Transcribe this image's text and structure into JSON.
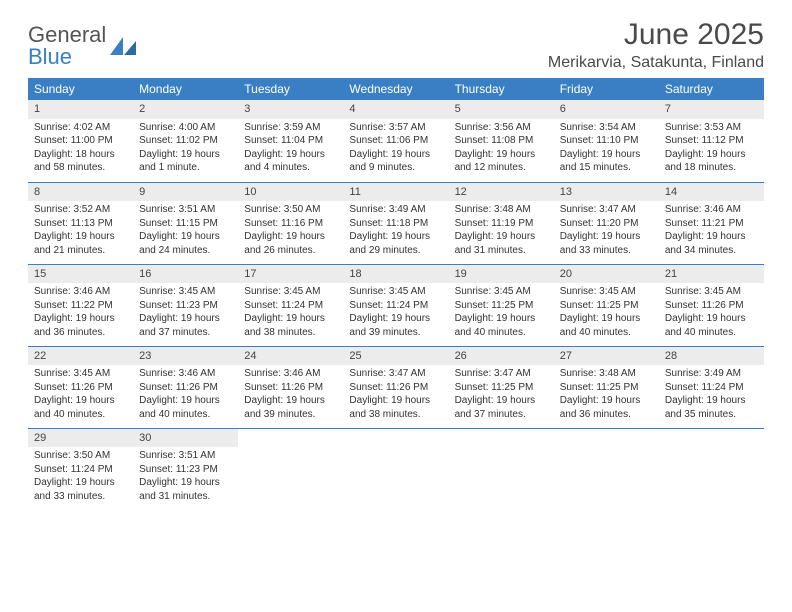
{
  "logo": {
    "line1": "General",
    "line2": "Blue"
  },
  "title": "June 2025",
  "location": "Merikarvia, Satakunta, Finland",
  "colors": {
    "accent": "#3a7fc4",
    "header_bg": "#3a7fc4",
    "daynum_bg": "#ececec",
    "text": "#333333"
  },
  "weekdays": [
    "Sunday",
    "Monday",
    "Tuesday",
    "Wednesday",
    "Thursday",
    "Friday",
    "Saturday"
  ],
  "days": [
    {
      "n": "1",
      "sr": "Sunrise: 4:02 AM",
      "ss": "Sunset: 11:00 PM",
      "dl1": "Daylight: 18 hours",
      "dl2": "and 58 minutes."
    },
    {
      "n": "2",
      "sr": "Sunrise: 4:00 AM",
      "ss": "Sunset: 11:02 PM",
      "dl1": "Daylight: 19 hours",
      "dl2": "and 1 minute."
    },
    {
      "n": "3",
      "sr": "Sunrise: 3:59 AM",
      "ss": "Sunset: 11:04 PM",
      "dl1": "Daylight: 19 hours",
      "dl2": "and 4 minutes."
    },
    {
      "n": "4",
      "sr": "Sunrise: 3:57 AM",
      "ss": "Sunset: 11:06 PM",
      "dl1": "Daylight: 19 hours",
      "dl2": "and 9 minutes."
    },
    {
      "n": "5",
      "sr": "Sunrise: 3:56 AM",
      "ss": "Sunset: 11:08 PM",
      "dl1": "Daylight: 19 hours",
      "dl2": "and 12 minutes."
    },
    {
      "n": "6",
      "sr": "Sunrise: 3:54 AM",
      "ss": "Sunset: 11:10 PM",
      "dl1": "Daylight: 19 hours",
      "dl2": "and 15 minutes."
    },
    {
      "n": "7",
      "sr": "Sunrise: 3:53 AM",
      "ss": "Sunset: 11:12 PM",
      "dl1": "Daylight: 19 hours",
      "dl2": "and 18 minutes."
    },
    {
      "n": "8",
      "sr": "Sunrise: 3:52 AM",
      "ss": "Sunset: 11:13 PM",
      "dl1": "Daylight: 19 hours",
      "dl2": "and 21 minutes."
    },
    {
      "n": "9",
      "sr": "Sunrise: 3:51 AM",
      "ss": "Sunset: 11:15 PM",
      "dl1": "Daylight: 19 hours",
      "dl2": "and 24 minutes."
    },
    {
      "n": "10",
      "sr": "Sunrise: 3:50 AM",
      "ss": "Sunset: 11:16 PM",
      "dl1": "Daylight: 19 hours",
      "dl2": "and 26 minutes."
    },
    {
      "n": "11",
      "sr": "Sunrise: 3:49 AM",
      "ss": "Sunset: 11:18 PM",
      "dl1": "Daylight: 19 hours",
      "dl2": "and 29 minutes."
    },
    {
      "n": "12",
      "sr": "Sunrise: 3:48 AM",
      "ss": "Sunset: 11:19 PM",
      "dl1": "Daylight: 19 hours",
      "dl2": "and 31 minutes."
    },
    {
      "n": "13",
      "sr": "Sunrise: 3:47 AM",
      "ss": "Sunset: 11:20 PM",
      "dl1": "Daylight: 19 hours",
      "dl2": "and 33 minutes."
    },
    {
      "n": "14",
      "sr": "Sunrise: 3:46 AM",
      "ss": "Sunset: 11:21 PM",
      "dl1": "Daylight: 19 hours",
      "dl2": "and 34 minutes."
    },
    {
      "n": "15",
      "sr": "Sunrise: 3:46 AM",
      "ss": "Sunset: 11:22 PM",
      "dl1": "Daylight: 19 hours",
      "dl2": "and 36 minutes."
    },
    {
      "n": "16",
      "sr": "Sunrise: 3:45 AM",
      "ss": "Sunset: 11:23 PM",
      "dl1": "Daylight: 19 hours",
      "dl2": "and 37 minutes."
    },
    {
      "n": "17",
      "sr": "Sunrise: 3:45 AM",
      "ss": "Sunset: 11:24 PM",
      "dl1": "Daylight: 19 hours",
      "dl2": "and 38 minutes."
    },
    {
      "n": "18",
      "sr": "Sunrise: 3:45 AM",
      "ss": "Sunset: 11:24 PM",
      "dl1": "Daylight: 19 hours",
      "dl2": "and 39 minutes."
    },
    {
      "n": "19",
      "sr": "Sunrise: 3:45 AM",
      "ss": "Sunset: 11:25 PM",
      "dl1": "Daylight: 19 hours",
      "dl2": "and 40 minutes."
    },
    {
      "n": "20",
      "sr": "Sunrise: 3:45 AM",
      "ss": "Sunset: 11:25 PM",
      "dl1": "Daylight: 19 hours",
      "dl2": "and 40 minutes."
    },
    {
      "n": "21",
      "sr": "Sunrise: 3:45 AM",
      "ss": "Sunset: 11:26 PM",
      "dl1": "Daylight: 19 hours",
      "dl2": "and 40 minutes."
    },
    {
      "n": "22",
      "sr": "Sunrise: 3:45 AM",
      "ss": "Sunset: 11:26 PM",
      "dl1": "Daylight: 19 hours",
      "dl2": "and 40 minutes."
    },
    {
      "n": "23",
      "sr": "Sunrise: 3:46 AM",
      "ss": "Sunset: 11:26 PM",
      "dl1": "Daylight: 19 hours",
      "dl2": "and 40 minutes."
    },
    {
      "n": "24",
      "sr": "Sunrise: 3:46 AM",
      "ss": "Sunset: 11:26 PM",
      "dl1": "Daylight: 19 hours",
      "dl2": "and 39 minutes."
    },
    {
      "n": "25",
      "sr": "Sunrise: 3:47 AM",
      "ss": "Sunset: 11:26 PM",
      "dl1": "Daylight: 19 hours",
      "dl2": "and 38 minutes."
    },
    {
      "n": "26",
      "sr": "Sunrise: 3:47 AM",
      "ss": "Sunset: 11:25 PM",
      "dl1": "Daylight: 19 hours",
      "dl2": "and 37 minutes."
    },
    {
      "n": "27",
      "sr": "Sunrise: 3:48 AM",
      "ss": "Sunset: 11:25 PM",
      "dl1": "Daylight: 19 hours",
      "dl2": "and 36 minutes."
    },
    {
      "n": "28",
      "sr": "Sunrise: 3:49 AM",
      "ss": "Sunset: 11:24 PM",
      "dl1": "Daylight: 19 hours",
      "dl2": "and 35 minutes."
    },
    {
      "n": "29",
      "sr": "Sunrise: 3:50 AM",
      "ss": "Sunset: 11:24 PM",
      "dl1": "Daylight: 19 hours",
      "dl2": "and 33 minutes."
    },
    {
      "n": "30",
      "sr": "Sunrise: 3:51 AM",
      "ss": "Sunset: 11:23 PM",
      "dl1": "Daylight: 19 hours",
      "dl2": "and 31 minutes."
    }
  ]
}
